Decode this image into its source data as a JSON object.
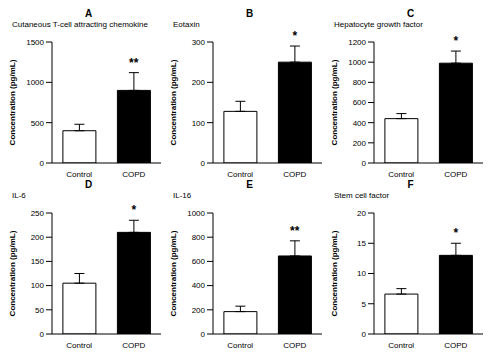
{
  "chart_data": [
    {
      "type": "bar",
      "panel": "A",
      "title": "Cutaneous T-cell attracting chemokine",
      "y_label": "Concentration (pg/mL)",
      "categories": [
        "Control",
        "COPD"
      ],
      "values": [
        400,
        900
      ],
      "errors": [
        80,
        220
      ],
      "colors": [
        "#ffffff",
        "#000000"
      ],
      "ylim": [
        0,
        1500
      ],
      "yticks": [
        0,
        500,
        1000,
        1500
      ],
      "annotation": {
        "category": "COPD",
        "text": "**"
      }
    },
    {
      "type": "bar",
      "panel": "B",
      "title": "Eotaxin",
      "y_label": "Concentration (pg/mL)",
      "categories": [
        "Control",
        "COPD"
      ],
      "values": [
        128,
        250
      ],
      "errors": [
        25,
        40
      ],
      "colors": [
        "#ffffff",
        "#000000"
      ],
      "ylim": [
        0,
        300
      ],
      "yticks": [
        0,
        100,
        200,
        300
      ],
      "annotation": {
        "category": "COPD",
        "text": "*"
      }
    },
    {
      "type": "bar",
      "panel": "C",
      "title": "Hepatocyte growth factor",
      "y_label": "Concentration (pg/mL)",
      "categories": [
        "Control",
        "COPD"
      ],
      "values": [
        440,
        990
      ],
      "errors": [
        50,
        120
      ],
      "colors": [
        "#ffffff",
        "#000000"
      ],
      "ylim": [
        0,
        1200
      ],
      "yticks": [
        0,
        200,
        400,
        600,
        800,
        1000,
        1200
      ],
      "annotation": {
        "category": "COPD",
        "text": "*"
      }
    },
    {
      "type": "bar",
      "panel": "D",
      "title": "IL-6",
      "y_label": "Concentration (pg/mL)",
      "categories": [
        "Control",
        "COPD"
      ],
      "values": [
        105,
        210
      ],
      "errors": [
        20,
        25
      ],
      "colors": [
        "#ffffff",
        "#000000"
      ],
      "ylim": [
        0,
        250
      ],
      "yticks": [
        0,
        50,
        100,
        150,
        200,
        250
      ],
      "annotation": {
        "category": "COPD",
        "text": "*"
      }
    },
    {
      "type": "bar",
      "panel": "E",
      "title": "IL-16",
      "y_label": "Concentration (pg/mL)",
      "categories": [
        "Control",
        "COPD"
      ],
      "values": [
        185,
        645
      ],
      "errors": [
        45,
        125
      ],
      "colors": [
        "#ffffff",
        "#000000"
      ],
      "ylim": [
        0,
        1000
      ],
      "yticks": [
        0,
        200,
        400,
        600,
        800,
        1000
      ],
      "annotation": {
        "category": "COPD",
        "text": "**"
      }
    },
    {
      "type": "bar",
      "panel": "F",
      "title": "Stem cell factor",
      "y_label": "Concentration (pg/mL)",
      "categories": [
        "Control",
        "COPD"
      ],
      "values": [
        6.6,
        13
      ],
      "errors": [
        0.9,
        2
      ],
      "colors": [
        "#ffffff",
        "#000000"
      ],
      "ylim": [
        0,
        20
      ],
      "yticks": [
        0,
        5,
        10,
        15,
        20
      ],
      "annotation": {
        "category": "COPD",
        "text": "*"
      }
    }
  ]
}
